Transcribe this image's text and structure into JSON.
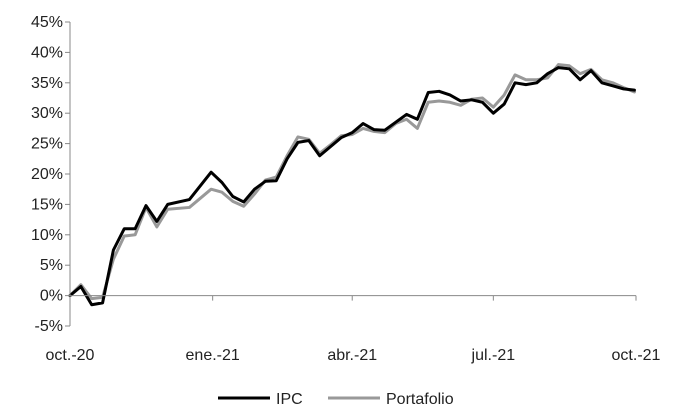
{
  "chart_data": {
    "type": "line",
    "title": "",
    "xlabel": "",
    "ylabel": "",
    "ylim": [
      -5,
      45
    ],
    "y_ticks": [
      -5,
      0,
      5,
      10,
      15,
      20,
      25,
      30,
      35,
      40,
      45
    ],
    "y_tick_labels": [
      "-5%",
      "0%",
      "5%",
      "10%",
      "15%",
      "20%",
      "25%",
      "30%",
      "35%",
      "40%",
      "45%"
    ],
    "x_range": [
      "2020-10-01",
      "2021-10-01"
    ],
    "x_ticks": [
      {
        "date": "2020-10-01",
        "label": "oct.-20"
      },
      {
        "date": "2021-01-01",
        "label": "ene.-21"
      },
      {
        "date": "2021-04-01",
        "label": "abr.-21"
      },
      {
        "date": "2021-07-01",
        "label": "jul.-21"
      },
      {
        "date": "2021-10-01",
        "label": "oct.-21"
      }
    ],
    "grid": false,
    "legend_position": "bottom",
    "series": [
      {
        "name": "IPC",
        "color": "#000000",
        "points": [
          [
            "2020-10-01",
            0.0
          ],
          [
            "2020-10-08",
            1.5
          ],
          [
            "2020-10-15",
            -1.5
          ],
          [
            "2020-10-22",
            -1.2
          ],
          [
            "2020-10-29",
            7.5
          ],
          [
            "2020-11-05",
            11.0
          ],
          [
            "2020-11-12",
            11.0
          ],
          [
            "2020-11-19",
            14.8
          ],
          [
            "2020-11-26",
            12.2
          ],
          [
            "2020-12-03",
            15.0
          ],
          [
            "2020-12-17",
            15.8
          ],
          [
            "2020-12-31",
            20.3
          ],
          [
            "2021-01-07",
            18.6
          ],
          [
            "2021-01-14",
            16.3
          ],
          [
            "2021-01-21",
            15.4
          ],
          [
            "2021-01-28",
            17.5
          ],
          [
            "2021-02-04",
            18.8
          ],
          [
            "2021-02-11",
            18.9
          ],
          [
            "2021-02-18",
            22.5
          ],
          [
            "2021-02-25",
            25.2
          ],
          [
            "2021-03-04",
            25.5
          ],
          [
            "2021-03-11",
            23.0
          ],
          [
            "2021-03-18",
            24.5
          ],
          [
            "2021-03-25",
            26.0
          ],
          [
            "2021-04-01",
            26.8
          ],
          [
            "2021-04-08",
            28.3
          ],
          [
            "2021-04-15",
            27.3
          ],
          [
            "2021-04-22",
            27.2
          ],
          [
            "2021-04-29",
            28.5
          ],
          [
            "2021-05-06",
            29.8
          ],
          [
            "2021-05-13",
            29.0
          ],
          [
            "2021-05-20",
            33.4
          ],
          [
            "2021-05-27",
            33.6
          ],
          [
            "2021-06-03",
            33.0
          ],
          [
            "2021-06-10",
            32.0
          ],
          [
            "2021-06-17",
            32.2
          ],
          [
            "2021-06-24",
            31.8
          ],
          [
            "2021-07-01",
            30.0
          ],
          [
            "2021-07-08",
            31.5
          ],
          [
            "2021-07-15",
            35.0
          ],
          [
            "2021-07-22",
            34.7
          ],
          [
            "2021-07-29",
            35.0
          ],
          [
            "2021-08-05",
            36.5
          ],
          [
            "2021-08-12",
            37.5
          ],
          [
            "2021-08-19",
            37.3
          ],
          [
            "2021-08-26",
            35.5
          ],
          [
            "2021-09-02",
            37.0
          ],
          [
            "2021-09-09",
            35.0
          ],
          [
            "2021-09-16",
            34.5
          ],
          [
            "2021-09-23",
            34.0
          ],
          [
            "2021-09-30",
            33.8
          ]
        ]
      },
      {
        "name": "Portafolio",
        "color": "#999999",
        "points": [
          [
            "2020-10-01",
            0.0
          ],
          [
            "2020-10-08",
            1.8
          ],
          [
            "2020-10-15",
            -0.5
          ],
          [
            "2020-10-22",
            -0.3
          ],
          [
            "2020-10-29",
            6.0
          ],
          [
            "2020-11-05",
            9.8
          ],
          [
            "2020-11-12",
            10.0
          ],
          [
            "2020-11-19",
            14.5
          ],
          [
            "2020-11-26",
            11.3
          ],
          [
            "2020-12-03",
            14.2
          ],
          [
            "2020-12-17",
            14.5
          ],
          [
            "2020-12-31",
            17.5
          ],
          [
            "2021-01-07",
            17.0
          ],
          [
            "2021-01-14",
            15.5
          ],
          [
            "2021-01-21",
            14.7
          ],
          [
            "2021-01-28",
            16.7
          ],
          [
            "2021-02-04",
            19.0
          ],
          [
            "2021-02-11",
            19.5
          ],
          [
            "2021-02-18",
            23.0
          ],
          [
            "2021-02-25",
            26.1
          ],
          [
            "2021-03-04",
            25.7
          ],
          [
            "2021-03-11",
            23.4
          ],
          [
            "2021-03-18",
            24.8
          ],
          [
            "2021-03-25",
            26.3
          ],
          [
            "2021-04-01",
            26.5
          ],
          [
            "2021-04-08",
            27.5
          ],
          [
            "2021-04-15",
            27.0
          ],
          [
            "2021-04-22",
            26.8
          ],
          [
            "2021-04-29",
            28.3
          ],
          [
            "2021-05-06",
            29.0
          ],
          [
            "2021-05-13",
            27.5
          ],
          [
            "2021-05-20",
            31.8
          ],
          [
            "2021-05-27",
            32.0
          ],
          [
            "2021-06-03",
            31.8
          ],
          [
            "2021-06-10",
            31.3
          ],
          [
            "2021-06-17",
            32.3
          ],
          [
            "2021-06-24",
            32.5
          ],
          [
            "2021-07-01",
            31.0
          ],
          [
            "2021-07-08",
            33.0
          ],
          [
            "2021-07-15",
            36.3
          ],
          [
            "2021-07-22",
            35.5
          ],
          [
            "2021-07-29",
            35.5
          ],
          [
            "2021-08-05",
            35.8
          ],
          [
            "2021-08-12",
            38.0
          ],
          [
            "2021-08-19",
            37.8
          ],
          [
            "2021-08-26",
            36.5
          ],
          [
            "2021-09-02",
            37.2
          ],
          [
            "2021-09-09",
            35.5
          ],
          [
            "2021-09-16",
            35.0
          ],
          [
            "2021-09-23",
            34.2
          ],
          [
            "2021-09-30",
            33.5
          ]
        ]
      }
    ]
  }
}
